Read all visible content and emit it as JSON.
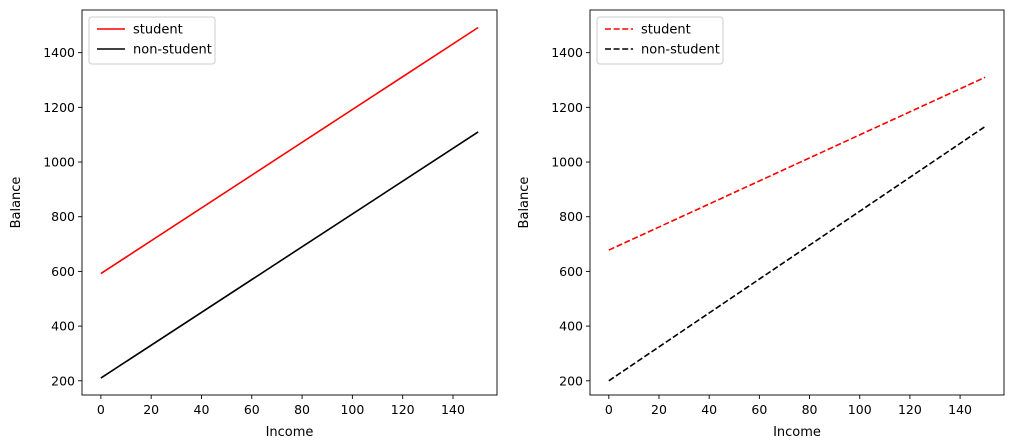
{
  "chart_data": [
    {
      "type": "line",
      "title": "",
      "xlabel": "Income",
      "ylabel": "Balance",
      "xlim": [
        -7.5,
        157.5
      ],
      "ylim": [
        148,
        1556
      ],
      "xticks": [
        0,
        20,
        40,
        60,
        80,
        100,
        120,
        140
      ],
      "yticks": [
        200,
        400,
        600,
        800,
        1000,
        1200,
        1400
      ],
      "grid": false,
      "legend": "top-left",
      "series": [
        {
          "name": "student",
          "color": "#ff0000",
          "dash": "solid",
          "x": [
            0,
            150
          ],
          "y": [
            592,
            1492
          ]
        },
        {
          "name": "non-student",
          "color": "#000000",
          "dash": "solid",
          "x": [
            0,
            150
          ],
          "y": [
            210,
            1110
          ]
        }
      ]
    },
    {
      "type": "line",
      "title": "",
      "xlabel": "Income",
      "ylabel": "Balance",
      "xlim": [
        -7.5,
        157.5
      ],
      "ylim": [
        148,
        1556
      ],
      "xticks": [
        0,
        20,
        40,
        60,
        80,
        100,
        120,
        140
      ],
      "yticks": [
        200,
        400,
        600,
        800,
        1000,
        1200,
        1400
      ],
      "grid": false,
      "legend": "top-left",
      "series": [
        {
          "name": "student",
          "color": "#ff0000",
          "dash": "dashed",
          "x": [
            0,
            150
          ],
          "y": [
            678,
            1310
          ]
        },
        {
          "name": "non-student",
          "color": "#000000",
          "dash": "dashed",
          "x": [
            0,
            150
          ],
          "y": [
            200,
            1130
          ]
        }
      ]
    }
  ]
}
